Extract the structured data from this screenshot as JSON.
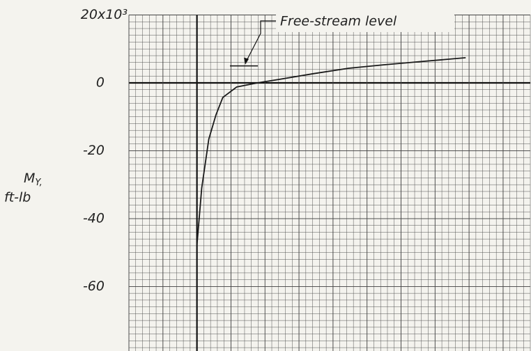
{
  "chart_data": {
    "type": "line",
    "ylabel": [
      {
        "text": "M",
        "sub": "Y,"
      },
      "ft-lb"
    ],
    "x": [
      0,
      0.7,
      1.74,
      2.8,
      3.8,
      5.85,
      8.9,
      12,
      17.1,
      22.3,
      27.4,
      32.5,
      39.5
    ],
    "series": [
      {
        "color": "#1a1a1a",
        "values": [
          -47.8,
          -31,
          -16.6,
          -9.4,
          -4.3,
          -1.2,
          0,
          1,
          2.7,
          4.3,
          5.3,
          6.2,
          7.4
        ]
      }
    ],
    "xlim": [
      -10,
      49
    ],
    "xticks": [
      -10,
      -5,
      0,
      5,
      10,
      15,
      20,
      25,
      30,
      35,
      40,
      45
    ],
    "ylim": [
      -79,
      20
    ],
    "yticks": [
      {
        "value": 20,
        "label": "20x10³"
      },
      0,
      -20,
      -40,
      -60
    ],
    "grid": true,
    "annotations": [
      {
        "text": "Free-stream level",
        "y": 5
      }
    ]
  }
}
